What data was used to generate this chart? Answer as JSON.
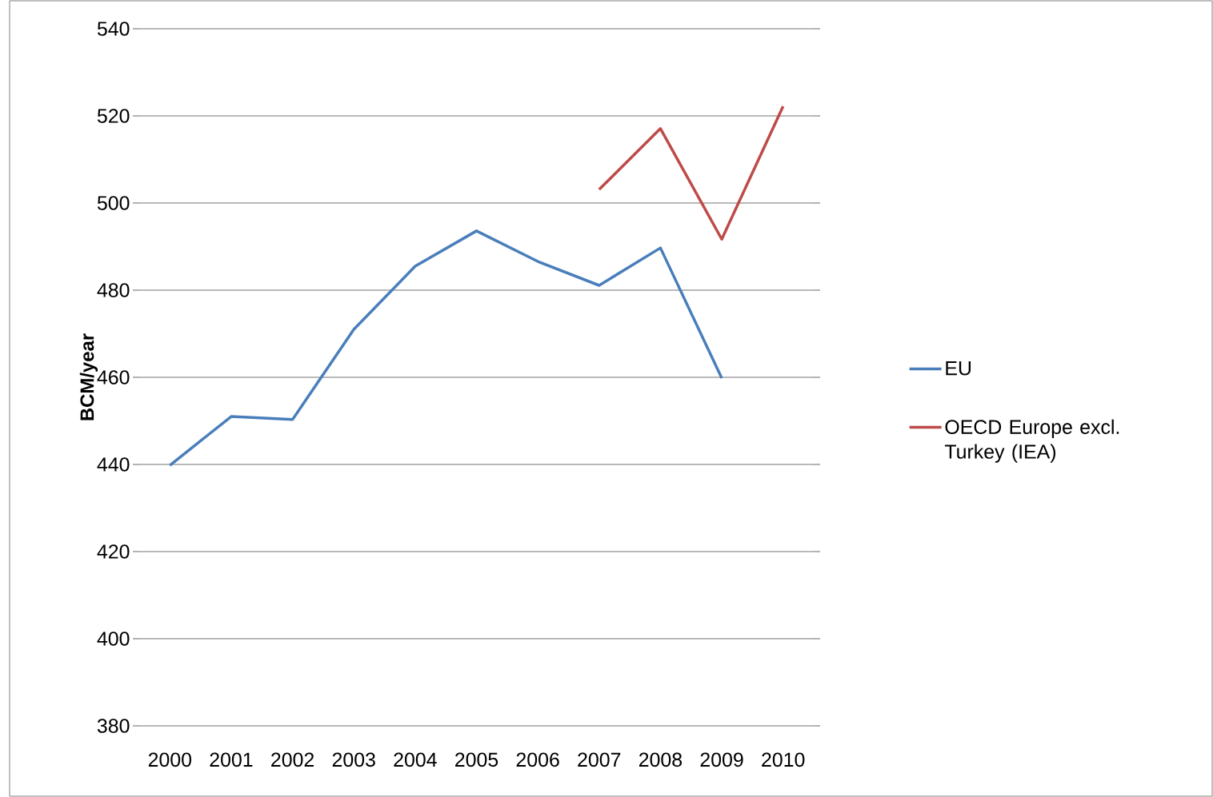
{
  "chart_data": {
    "type": "line",
    "ylabel": "BCM/year",
    "categories": [
      "2000",
      "2001",
      "2002",
      "2003",
      "2004",
      "2005",
      "2006",
      "2007",
      "2008",
      "2009",
      "2010"
    ],
    "series": [
      {
        "name": "EU",
        "color": "#4a7ebb",
        "values": [
          439.8,
          451,
          450.3,
          471,
          485.5,
          493.6,
          486.6,
          481.1,
          489.7,
          459.8,
          null
        ]
      },
      {
        "name": "OECD Europe excl. Turkey (IEA)",
        "color": "#be4b48",
        "values": [
          null,
          null,
          null,
          null,
          null,
          null,
          null,
          503.1,
          517.1,
          491.7,
          522.2
        ]
      }
    ],
    "ylim": [
      380,
      540
    ],
    "yticks": [
      380,
      400,
      420,
      440,
      460,
      480,
      500,
      520,
      540
    ],
    "grid": "y",
    "legend": "right",
    "marker": "none",
    "line_style": "solid"
  }
}
